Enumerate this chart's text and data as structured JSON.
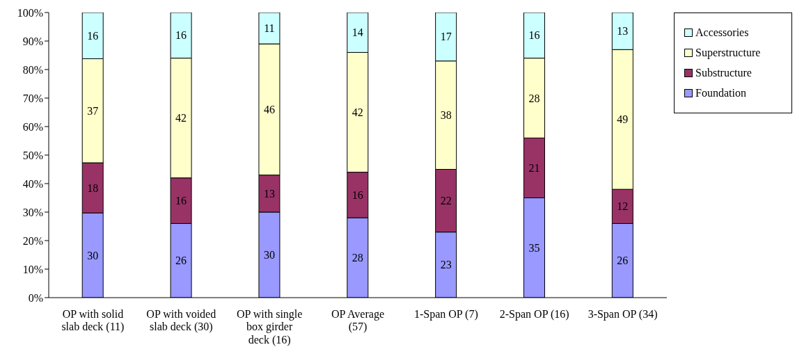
{
  "chart_data": {
    "type": "bar",
    "stacked": true,
    "categories": [
      "OP with solid slab deck (11)",
      "OP with voided slab deck (30)",
      "OP with single box girder deck (16)",
      "OP Average (57)",
      "1-Span OP (7)",
      "2-Span OP (16)",
      "3-Span OP (34)"
    ],
    "series": [
      {
        "name": "Foundation",
        "color": "#9999ff",
        "values": [
          29.7,
          26,
          30,
          28,
          23,
          35,
          26
        ],
        "value_labels": [
          "30",
          "26",
          "30",
          "28",
          "23",
          "35",
          "26"
        ]
      },
      {
        "name": "Substructure",
        "color": "#993366",
        "values": [
          17.6,
          16,
          13,
          16,
          22,
          21,
          12
        ],
        "value_labels": [
          "18",
          "16",
          "13",
          "16",
          "22",
          "21",
          "12"
        ]
      },
      {
        "name": "Superstructure",
        "color": "#ffffcc",
        "values": [
          36.5,
          42,
          46,
          42,
          38,
          28,
          49
        ],
        "value_labels": [
          "37",
          "42",
          "46",
          "42",
          "38",
          "28",
          "49"
        ]
      },
      {
        "name": "Accessories",
        "color": "#ccffff",
        "values": [
          16.2,
          16,
          11,
          14,
          17,
          16,
          13
        ],
        "value_labels": [
          "16",
          "16",
          "11",
          "14",
          "17",
          "16",
          "13"
        ]
      }
    ],
    "ylim": [
      0,
      100
    ],
    "yticks": [
      {
        "value": 0,
        "label": "0%"
      },
      {
        "value": 10,
        "label": "10%"
      },
      {
        "value": 20,
        "label": "20%"
      },
      {
        "value": 30,
        "label": "30%"
      },
      {
        "value": 40,
        "label": "40%"
      },
      {
        "value": 50,
        "label": "50%"
      },
      {
        "value": 60,
        "label": "60%"
      },
      {
        "value": 70,
        "label": "70%"
      },
      {
        "value": 80,
        "label": "80%"
      },
      {
        "value": 90,
        "label": "90%"
      },
      {
        "value": 100,
        "label": "100%"
      }
    ],
    "legend": "top right"
  }
}
